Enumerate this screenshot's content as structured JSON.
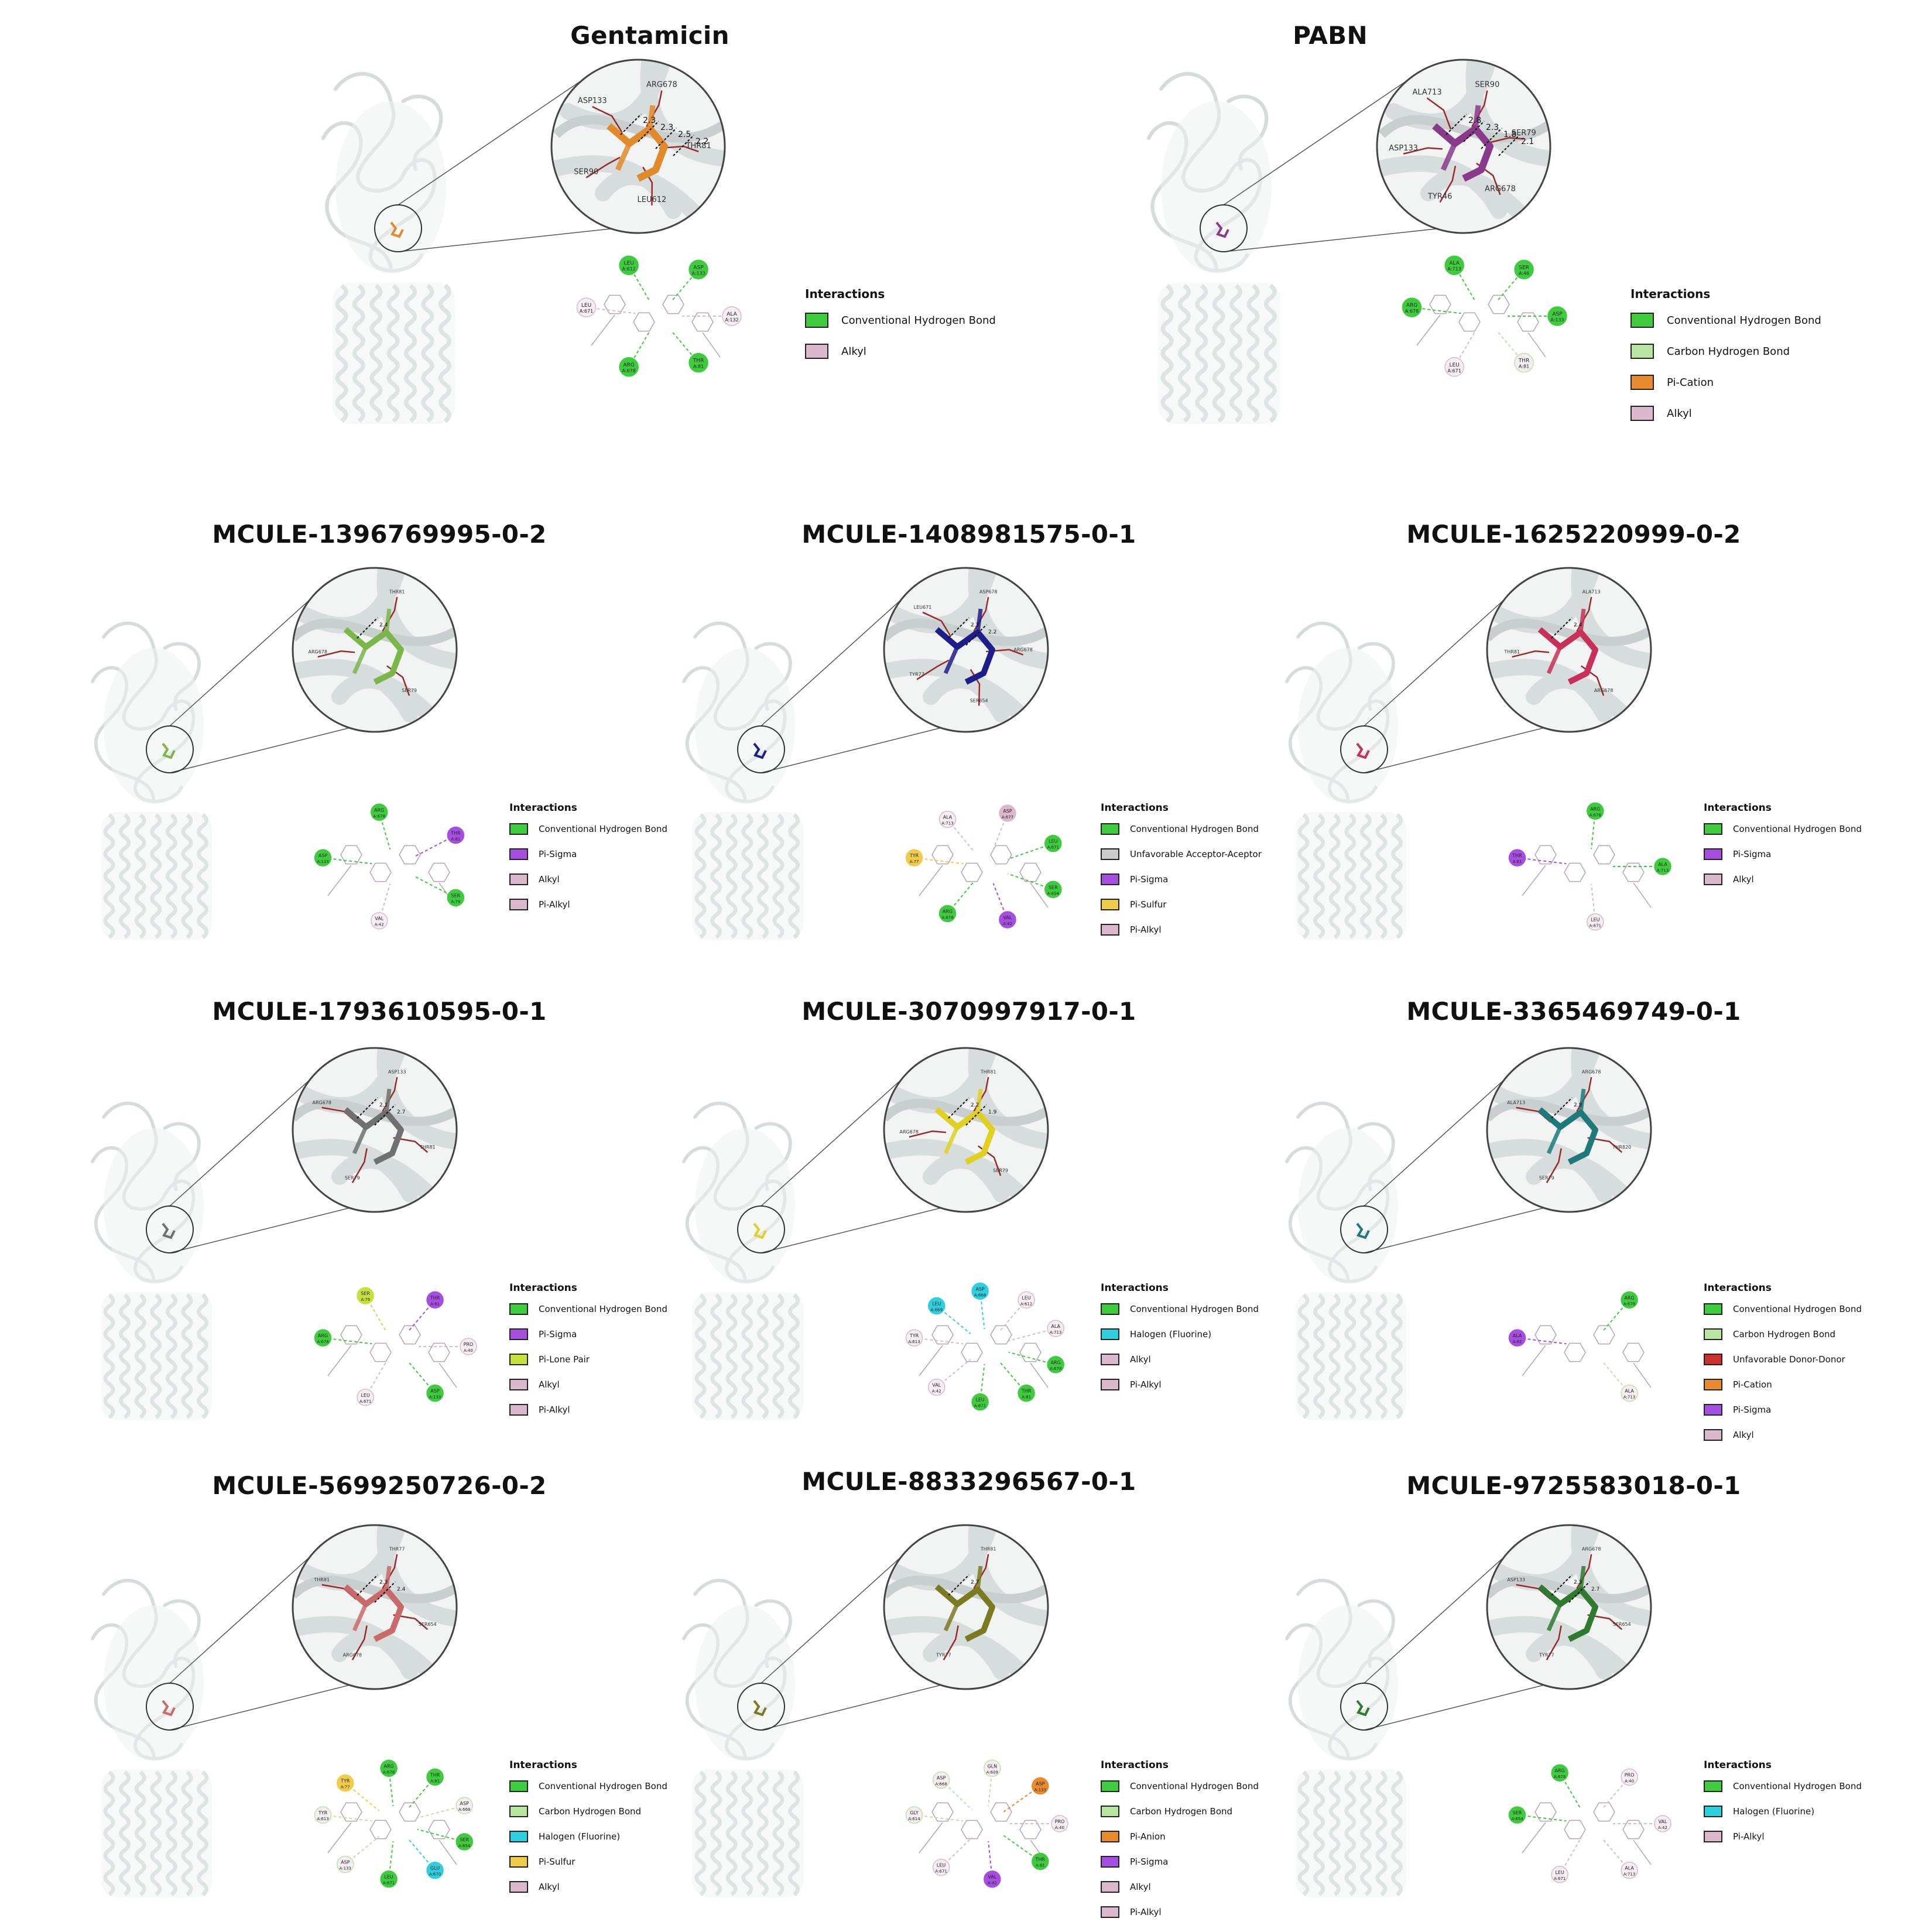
{
  "colors": {
    "Conventional Hydrogen Bond": "#3ecb3e",
    "Carbon Hydrogen Bond": "#b8e6a0",
    "Pi-Cation": "#e88a2e",
    "Pi-Anion": "#e88a2e",
    "Alkyl": "#dcb8cc",
    "Pi-Alkyl": "#dcb8cc",
    "Pi-Sigma": "#a64ee0",
    "Pi-Sulfur": "#f0cc4a",
    "Unfavorable Acceptor-Acceptor": "#cc2f2f",
    "Unfavorable Donor-Donor": "#cc2f2f",
    "Halogen (Fluorine)": "#2ed0e0",
    "Pi-Lone Pair": "#c6e03c"
  },
  "panels": [
    {
      "title": "Gentamicin",
      "ligand_color": "#e08a2a",
      "legend_title": "Interactions",
      "legend": [
        "Conventional Hydrogen Bond",
        "Alkyl"
      ],
      "residues": [
        "ARG678",
        "THR81",
        "LEU612",
        "SER90",
        "ASP133"
      ],
      "distances": [
        "2.3",
        "2.3",
        "2.5",
        "2.2"
      ],
      "nodes": [
        {
          "l": "LEU",
          "n": "A:671",
          "t": "Alkyl"
        },
        {
          "l": "LEU",
          "n": "A:612",
          "t": "Conventional Hydrogen Bond"
        },
        {
          "l": "ASP",
          "n": "A:133",
          "t": "Conventional Hydrogen Bond"
        },
        {
          "l": "ALA",
          "n": "A:132",
          "t": "Alkyl"
        },
        {
          "l": "THR",
          "n": "A:81",
          "t": "Conventional Hydrogen Bond"
        },
        {
          "l": "ARG",
          "n": "A:678",
          "t": "Conventional Hydrogen Bond"
        }
      ]
    },
    {
      "title": "PABN",
      "ligand_color": "#8a3a8a",
      "legend_title": "Interactions",
      "legend": [
        "Conventional Hydrogen Bond",
        "Carbon Hydrogen Bond",
        "Pi-Cation",
        "Alkyl"
      ],
      "residues": [
        "SER90",
        "SER79",
        "ARG678",
        "TYR46",
        "ASP133",
        "ALA713"
      ],
      "distances": [
        "2.8",
        "2.3",
        "1.8",
        "2.1"
      ],
      "nodes": [
        {
          "l": "ARG",
          "n": "A:678",
          "t": "Conventional Hydrogen Bond"
        },
        {
          "l": "ALA",
          "n": "A:713",
          "t": "Conventional Hydrogen Bond"
        },
        {
          "l": "SER",
          "n": "A:46",
          "t": "Conventional Hydrogen Bond"
        },
        {
          "l": "ASP",
          "n": "A:133",
          "t": "Conventional Hydrogen Bond"
        },
        {
          "l": "THR",
          "n": "A:81",
          "t": "Carbon Hydrogen Bond"
        },
        {
          "l": "LEU",
          "n": "A:671",
          "t": "Alkyl"
        }
      ]
    },
    {
      "title": "MCULE-1396769995-0-2",
      "ligand_color": "#7ab648",
      "legend_title": "Interactions",
      "legend": [
        "Conventional Hydrogen Bond",
        "Pi-Sigma",
        "Alkyl",
        "Pi-Alkyl"
      ],
      "residues": [
        "THR81",
        "SER79",
        "ARG678"
      ],
      "distances": [
        "2.4"
      ],
      "nodes": [
        {
          "l": "ASP",
          "n": "A:133",
          "t": "Conventional Hydrogen Bond"
        },
        {
          "l": "ARG",
          "n": "A:678",
          "t": "Conventional Hydrogen Bond"
        },
        {
          "l": "THR",
          "n": "A:81",
          "t": "Pi-Sigma"
        },
        {
          "l": "SER",
          "n": "A:79",
          "t": "Conventional Hydrogen Bond"
        },
        {
          "l": "VAL",
          "n": "A:42",
          "t": "Alkyl"
        }
      ]
    },
    {
      "title": "MCULE-1408981575-0-1",
      "ligand_color": "#1e1e8a",
      "legend_title": "Interactions",
      "legend": [
        "Conventional Hydrogen Bond",
        "Unfavorable Acceptor-Aceptor",
        "Pi-Sigma",
        "Pi-Sulfur",
        "Pi-Alkyl"
      ],
      "residues": [
        "ASP678",
        "ARG678",
        "SER654",
        "TYR77",
        "LEU671"
      ],
      "distances": [
        "2.3",
        "2.2"
      ],
      "nodes": [
        {
          "l": "TYR",
          "n": "A:77",
          "t": "Pi-Sulfur"
        },
        {
          "l": "ALA",
          "n": "A:713",
          "t": "Pi-Alkyl"
        },
        {
          "l": "ASP",
          "n": "A:677",
          "t": "Unfavorable Acceptor-Aceptor"
        },
        {
          "l": "LEU",
          "n": "A:671",
          "t": "Conventional Hydrogen Bond"
        },
        {
          "l": "SER",
          "n": "A:654",
          "t": "Conventional Hydrogen Bond"
        },
        {
          "l": "VAL",
          "n": "A:42",
          "t": "Pi-Sigma"
        },
        {
          "l": "ARG",
          "n": "A:678",
          "t": "Conventional Hydrogen Bond"
        }
      ]
    },
    {
      "title": "MCULE-1625220999-0-2",
      "ligand_color": "#c8305a",
      "legend_title": "Interactions",
      "legend": [
        "Conventional Hydrogen Bond",
        "Pi-Sigma",
        "Alkyl"
      ],
      "residues": [
        "ALA713",
        "ARG678",
        "THR81"
      ],
      "distances": [
        "2.4"
      ],
      "nodes": [
        {
          "l": "THR",
          "n": "A:81",
          "t": "Pi-Sigma"
        },
        {
          "l": "ARG",
          "n": "A:678",
          "t": "Conventional Hydrogen Bond"
        },
        {
          "l": "ALA",
          "n": "A:713",
          "t": "Conventional Hydrogen Bond"
        },
        {
          "l": "LEU",
          "n": "A:671",
          "t": "Alkyl"
        }
      ]
    },
    {
      "title": "MCULE-1793610595-0-1",
      "ligand_color": "#707070",
      "legend_title": "Interactions",
      "legend": [
        "Conventional Hydrogen Bond",
        "Pi-Sigma",
        "Pi-Lone Pair",
        "Alkyl",
        "Pi-Alkyl"
      ],
      "residues": [
        "ASP133",
        "THR81",
        "SER79",
        "ARG678"
      ],
      "distances": [
        "2.1",
        "2.7"
      ],
      "nodes": [
        {
          "l": "ARG",
          "n": "A:678",
          "t": "Conventional Hydrogen Bond"
        },
        {
          "l": "SER",
          "n": "A:79",
          "t": "Pi-Lone Pair"
        },
        {
          "l": "THR",
          "n": "A:81",
          "t": "Pi-Sigma"
        },
        {
          "l": "PRO",
          "n": "A:40",
          "t": "Alkyl"
        },
        {
          "l": "ASP",
          "n": "A:133",
          "t": "Conventional Hydrogen Bond"
        },
        {
          "l": "LEU",
          "n": "A:671",
          "t": "Pi-Alkyl"
        }
      ]
    },
    {
      "title": "MCULE-3070997917-0-1",
      "ligand_color": "#e0d020",
      "legend_title": "Interactions",
      "legend": [
        "Conventional Hydrogen Bond",
        "Halogen (Fluorine)",
        "Alkyl",
        "Pi-Alkyl"
      ],
      "residues": [
        "THR81",
        "SER79",
        "ARG678"
      ],
      "distances": [
        "2.2",
        "1.9"
      ],
      "nodes": [
        {
          "l": "TYR",
          "n": "A:613",
          "t": "Alkyl"
        },
        {
          "l": "LEU",
          "n": "A:669",
          "t": "Halogen (Fluorine)"
        },
        {
          "l": "ASP",
          "n": "A:668",
          "t": "Halogen (Fluorine)"
        },
        {
          "l": "LEU",
          "n": "A:612",
          "t": "Alkyl"
        },
        {
          "l": "ALA",
          "n": "A:713",
          "t": "Pi-Alkyl"
        },
        {
          "l": "ARG",
          "n": "A:678",
          "t": "Conventional Hydrogen Bond"
        },
        {
          "l": "THR",
          "n": "A:81",
          "t": "Conventional Hydrogen Bond"
        },
        {
          "l": "LEU",
          "n": "A:671",
          "t": "Conventional Hydrogen Bond"
        },
        {
          "l": "VAL",
          "n": "A:42",
          "t": "Pi-Alkyl"
        }
      ]
    },
    {
      "title": "MCULE-3365469749-0-1",
      "ligand_color": "#1e7a7a",
      "legend_title": "Interactions",
      "legend": [
        "Conventional Hydrogen Bond",
        "Carbon Hydrogen Bond",
        "Unfavorable Donor-Donor",
        "Pi-Cation",
        "Pi-Sigma",
        "Alkyl"
      ],
      "residues": [
        "ARG678",
        "THR820",
        "SER79",
        "ALA713"
      ],
      "distances": [
        "2.8"
      ],
      "nodes": [
        {
          "l": "ALA",
          "n": "A:82",
          "t": "Pi-Sigma"
        },
        {
          "l": "ARG",
          "n": "A:678",
          "t": "Conventional Hydrogen Bond"
        },
        {
          "l": "ALA",
          "n": "A:713",
          "t": "Carbon Hydrogen Bond"
        }
      ]
    },
    {
      "title": "MCULE-5699250726-0-2",
      "ligand_color": "#c86a6a",
      "legend_title": "Interactions",
      "legend": [
        "Conventional Hydrogen Bond",
        "Carbon Hydrogen Bond",
        "Halogen (Fluorine)",
        "Pi-Sulfur",
        "Alkyl"
      ],
      "residues": [
        "THR77",
        "SER654",
        "ARG678",
        "THR81"
      ],
      "distances": [
        "2.3",
        "2.4"
      ],
      "nodes": [
        {
          "l": "TYR",
          "n": "A:613",
          "t": "Carbon Hydrogen Bond"
        },
        {
          "l": "TYR",
          "n": "A:77",
          "t": "Pi-Sulfur"
        },
        {
          "l": "ARG",
          "n": "A:678",
          "t": "Conventional Hydrogen Bond"
        },
        {
          "l": "THR",
          "n": "A:81",
          "t": "Conventional Hydrogen Bond"
        },
        {
          "l": "ASP",
          "n": "A:668",
          "t": "Carbon Hydrogen Bond"
        },
        {
          "l": "SER",
          "n": "A:654",
          "t": "Conventional Hydrogen Bond"
        },
        {
          "l": "GLU",
          "n": "A:670",
          "t": "Halogen (Fluorine)"
        },
        {
          "l": "LEU",
          "n": "A:671",
          "t": "Conventional Hydrogen Bond"
        },
        {
          "l": "ASP",
          "n": "A:133",
          "t": "Carbon Hydrogen Bond"
        }
      ]
    },
    {
      "title": "MCULE-8833296567-0-1",
      "ligand_color": "#7a7a20",
      "legend_title": "Interactions",
      "legend": [
        "Conventional Hydrogen Bond",
        "Carbon Hydrogen Bond",
        "Pi-Anion",
        "Pi-Sigma",
        "Alkyl",
        "Pi-Alkyl"
      ],
      "residues": [
        "THR81",
        "TYR77"
      ],
      "distances": [
        "2.7"
      ],
      "nodes": [
        {
          "l": "GLY",
          "n": "A:614",
          "t": "Carbon Hydrogen Bond"
        },
        {
          "l": "ASP",
          "n": "A:668",
          "t": "Carbon Hydrogen Bond"
        },
        {
          "l": "GLN",
          "n": "A:609",
          "t": "Carbon Hydrogen Bond"
        },
        {
          "l": "ASP",
          "n": "A:133",
          "t": "Pi-Anion"
        },
        {
          "l": "PRO",
          "n": "A:40",
          "t": "Alkyl"
        },
        {
          "l": "THR",
          "n": "A:81",
          "t": "Conventional Hydrogen Bond"
        },
        {
          "l": "VAL",
          "n": "A:42",
          "t": "Pi-Sigma"
        },
        {
          "l": "LEU",
          "n": "A:671",
          "t": "Pi-Alkyl"
        }
      ]
    },
    {
      "title": "MCULE-9725583018-0-1",
      "ligand_color": "#2e7a2e",
      "legend_title": "Interactions",
      "legend": [
        "Conventional Hydrogen Bond",
        "Halogen (Fluorine)",
        "Pi-Alkyl"
      ],
      "residues": [
        "ARG678",
        "SER654",
        "TYR77",
        "ASP133"
      ],
      "distances": [
        "2.3",
        "2.7"
      ],
      "nodes": [
        {
          "l": "SER",
          "n": "A:654",
          "t": "Conventional Hydrogen Bond"
        },
        {
          "l": "ARG",
          "n": "A:678",
          "t": "Conventional Hydrogen Bond"
        },
        {
          "l": "PRO",
          "n": "A:40",
          "t": "Pi-Alkyl"
        },
        {
          "l": "VAL",
          "n": "A:42",
          "t": "Pi-Alkyl"
        },
        {
          "l": "ALA",
          "n": "A:713",
          "t": "Pi-Alkyl"
        },
        {
          "l": "LEU",
          "n": "A:671",
          "t": "Pi-Alkyl"
        }
      ]
    }
  ]
}
